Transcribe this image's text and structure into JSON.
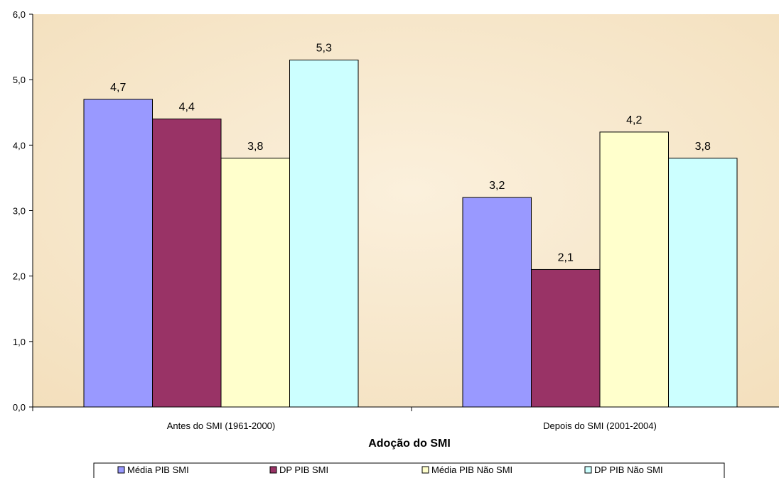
{
  "chart_data": {
    "type": "bar",
    "title": "",
    "xlabel": "Adoção do SMI",
    "ylabel": "",
    "ylim": [
      0,
      6
    ],
    "yticks": [
      "0,0",
      "1,0",
      "2,0",
      "3,0",
      "4,0",
      "5,0",
      "6,0"
    ],
    "ytick_values": [
      0,
      1,
      2,
      3,
      4,
      5,
      6
    ],
    "categories": [
      "Antes do SMI (1961-2000)",
      "Depois do SMI (2001-2004)"
    ],
    "series": [
      {
        "name": "Média PIB SMI",
        "values": [
          4.7,
          3.2
        ],
        "labels": [
          "4,7",
          "3,2"
        ],
        "color": "#9999ff"
      },
      {
        "name": "DP PIB SMI",
        "values": [
          4.4,
          2.1
        ],
        "labels": [
          "4,4",
          "2,1"
        ],
        "color": "#993366"
      },
      {
        "name": "Média PIB Não SMI",
        "values": [
          3.8,
          4.2
        ],
        "labels": [
          "3,8",
          "4,2"
        ],
        "color": "#ffffcc"
      },
      {
        "name": "DP PIB Não SMI",
        "values": [
          5.3,
          3.8
        ],
        "labels": [
          "5,3",
          "3,8"
        ],
        "color": "#ccffff"
      }
    ],
    "grid": false,
    "legend_position": "bottom",
    "plot_background": "#f5e6cc"
  }
}
